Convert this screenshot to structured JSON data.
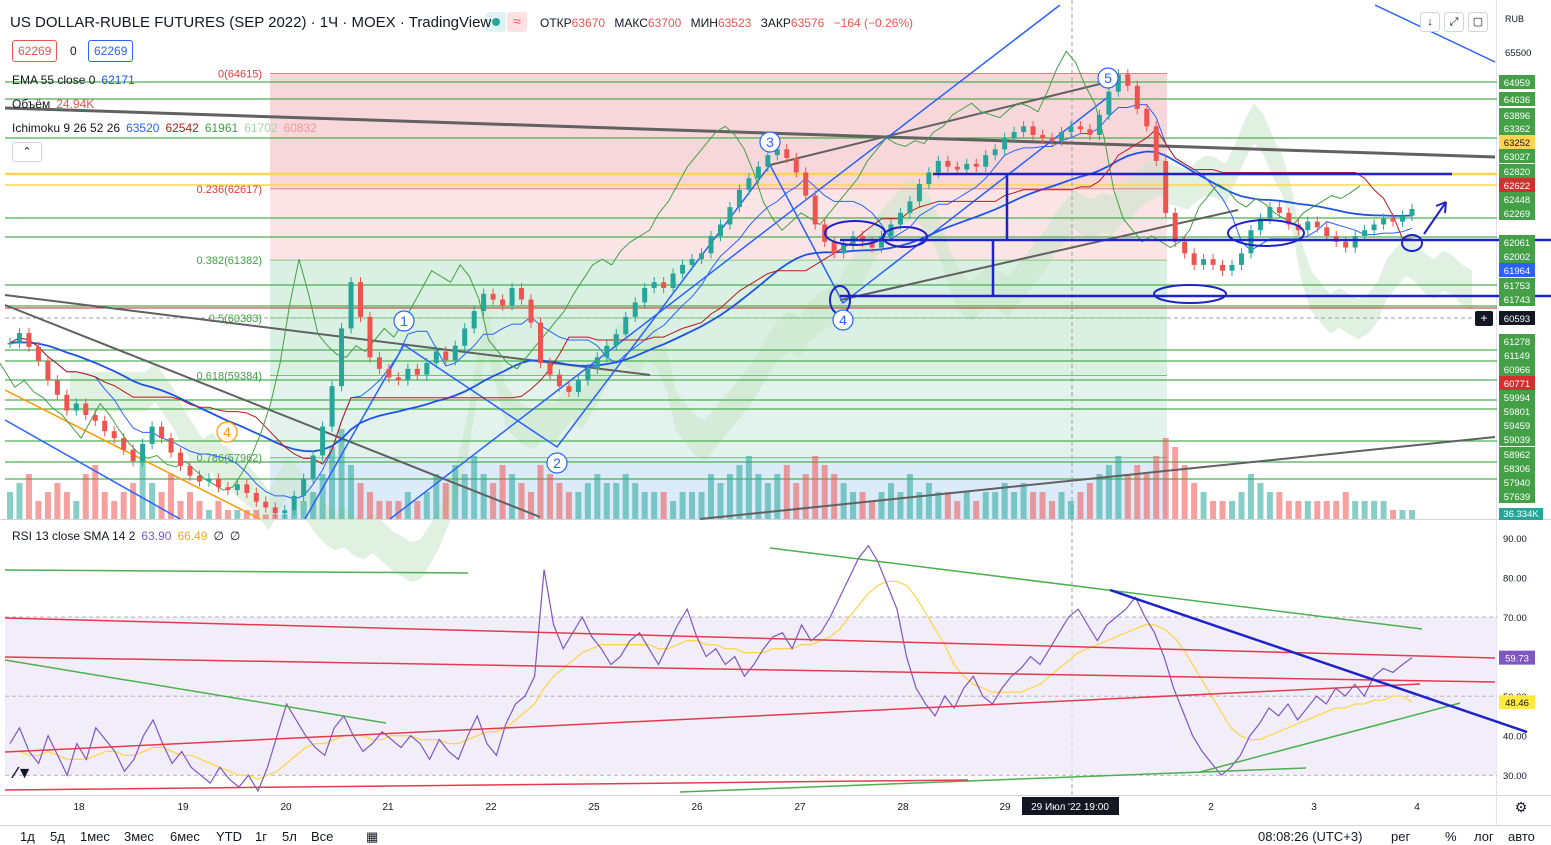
{
  "header": {
    "title": "US DOLLAR-RUBLE FUTURES (SEP 2022) · 1Ч · MOEX · TradingView",
    "ohlc": [
      {
        "label": "ОТКР",
        "value": "63670"
      },
      {
        "label": "МАКС",
        "value": "63700"
      },
      {
        "label": "МИН",
        "value": "63523"
      },
      {
        "label": "ЗАКР",
        "value": "63576"
      },
      {
        "label": "",
        "value": "−164 (−0.26%)"
      }
    ],
    "sell_price": "62269",
    "spread": "0",
    "buy_price": "62269",
    "currency": "RUB",
    "collapse": "⌃"
  },
  "legend": {
    "ema": {
      "name": "EMA 55 close 0",
      "value": "62171"
    },
    "volume": {
      "name": "Объём",
      "value": "24.94K"
    },
    "ichimoku": {
      "name": "Ichimoku 9 26 52 26",
      "values": [
        "63520",
        "62542",
        "61961",
        "61702",
        "60832"
      ]
    },
    "rsi": {
      "name": "RSI 13 close SMA 14 2",
      "values": [
        "63.90",
        "66.49",
        "∅",
        "∅"
      ]
    }
  },
  "colors": {
    "up": "#26a69a",
    "down": "#ef5350",
    "green_line": "#4caf50",
    "blue_draw": "#1e22c8",
    "fib_red": "#f8d7da",
    "fib_green": "#d9f0e3",
    "fib_blue": "#dcebf9",
    "rsi_line": "#7e57c2",
    "rsi_ma": "#ffd54f"
  },
  "chart_data": {
    "type": "candlestick",
    "title": "US DOLLAR-RUBLE FUTURES (SEP 2022)",
    "interval": "1Ч",
    "ylim": [
      56900,
      65800
    ],
    "x_ticks": [
      "18",
      "19",
      "20",
      "21",
      "22",
      "25",
      "26",
      "27",
      "28",
      "29",
      "29 Июл '22   19:00",
      "2",
      "3",
      "4"
    ],
    "cursor_date": "29 Июл '22   19:00",
    "price_ticks": [
      "65500"
    ],
    "fib_levels": [
      {
        "label": "0(64615)",
        "price": 64615
      },
      {
        "label": "0.236(62617)",
        "price": 62617
      },
      {
        "label": "0.382(61382)",
        "price": 61382
      },
      {
        "label": "0.5(60383)",
        "price": 60383
      },
      {
        "label": "0.618(59384)",
        "price": 59384
      },
      {
        "label": "0.786(57962)",
        "price": 57962
      }
    ],
    "horizontal_levels": [
      {
        "price": 64959,
        "label": "64959"
      },
      {
        "price": 64636,
        "label": "64636"
      },
      {
        "price": 63896,
        "label": "63896"
      },
      {
        "price": 63362,
        "label": "63362"
      },
      {
        "price": 63252,
        "label": "63252"
      },
      {
        "price": 63027,
        "label": "63027"
      },
      {
        "price": 62820,
        "label": "62820"
      },
      {
        "price": 62622,
        "label": "62622"
      },
      {
        "price": 62448,
        "label": "62448"
      },
      {
        "price": 62269,
        "label": "62269"
      },
      {
        "price": 62061,
        "label": "62061"
      },
      {
        "price": 62002,
        "label": "62002"
      },
      {
        "price": 61964,
        "label": "61964"
      },
      {
        "price": 61753,
        "label": "61753"
      },
      {
        "price": 61743,
        "label": "61743"
      },
      {
        "price": 60593,
        "label": "60593"
      },
      {
        "price": 61278,
        "label": "61278"
      },
      {
        "price": 61149,
        "label": "61149"
      },
      {
        "price": 60966,
        "label": "60966"
      },
      {
        "price": 60771,
        "label": "60771"
      },
      {
        "price": 59994,
        "label": "59994"
      },
      {
        "price": 59801,
        "label": "59801"
      },
      {
        "price": 59459,
        "label": "59459"
      },
      {
        "price": 59039,
        "label": "59039"
      },
      {
        "price": 58962,
        "label": "58962"
      },
      {
        "price": 58306,
        "label": "58306"
      },
      {
        "price": 57940,
        "label": "57940"
      },
      {
        "price": 57639,
        "label": "57639"
      }
    ],
    "volume_label": "36.334K",
    "wave_labels": [
      "1",
      "2",
      "3",
      "4",
      "5",
      "4"
    ],
    "closes": [
      59950,
      60120,
      59880,
      59640,
      59300,
      59050,
      58780,
      58900,
      58700,
      58600,
      58420,
      58300,
      58100,
      57900,
      58200,
      58500,
      58300,
      58050,
      57820,
      57650,
      57550,
      57600,
      57450,
      57400,
      57500,
      57350,
      57200,
      57100,
      57000,
      57050,
      57300,
      57600,
      58000,
      58500,
      59200,
      60200,
      61000,
      60400,
      59700,
      59500,
      59350,
      59300,
      59500,
      59400,
      59600,
      59800,
      59650,
      59900,
      60200,
      60500,
      60800,
      60700,
      60600,
      60900,
      60700,
      60300,
      59600,
      59400,
      59200,
      59100,
      59300,
      59500,
      59700,
      59900,
      60100,
      60400,
      60650,
      60900,
      61000,
      60900,
      61150,
      61300,
      61400,
      61500,
      61800,
      62000,
      62300,
      62600,
      62800,
      63000,
      63200,
      63300,
      63150,
      62900,
      62500,
      62000,
      61700,
      61500,
      61650,
      61800,
      61700,
      61600,
      61800,
      62000,
      62200,
      62400,
      62700,
      62900,
      63100,
      63000,
      62950,
      63050,
      63000,
      63200,
      63300,
      63500,
      63600,
      63700,
      63550,
      63500,
      63450,
      63600,
      63700,
      63650,
      63550,
      63900,
      64300,
      64600,
      64400,
      64000,
      63700,
      63100,
      62200,
      61700,
      61500,
      61300,
      61400,
      61300,
      61200,
      61300,
      61500,
      61900,
      62100,
      62300,
      62200,
      62000,
      61900,
      62050,
      61950,
      61800,
      61700,
      61600,
      61800,
      61900,
      62000,
      62100,
      62050,
      62150,
      62269
    ],
    "volumes": [
      0.3,
      0.4,
      0.5,
      0.2,
      0.3,
      0.4,
      0.3,
      0.2,
      0.5,
      0.6,
      0.3,
      0.2,
      0.3,
      0.4,
      0.7,
      0.4,
      0.3,
      0.5,
      0.2,
      0.3,
      0.2,
      0.1,
      0.2,
      0.1,
      0.1,
      0.1,
      0.1,
      0.05,
      0.05,
      0.05,
      0.1,
      0.2,
      0.3,
      0.5,
      0.8,
      1.0,
      0.6,
      0.4,
      0.3,
      0.2,
      0.2,
      0.2,
      0.3,
      0.2,
      0.3,
      0.5,
      0.4,
      0.6,
      0.5,
      0.7,
      0.5,
      0.4,
      0.6,
      0.5,
      0.4,
      0.3,
      0.6,
      0.5,
      0.4,
      0.3,
      0.3,
      0.4,
      0.5,
      0.4,
      0.4,
      0.5,
      0.4,
      0.3,
      0.3,
      0.3,
      0.2,
      0.3,
      0.3,
      0.3,
      0.5,
      0.4,
      0.5,
      0.6,
      0.7,
      0.5,
      0.4,
      0.5,
      0.6,
      0.4,
      0.5,
      0.7,
      0.6,
      0.5,
      0.4,
      0.3,
      0.3,
      0.2,
      0.3,
      0.4,
      0.3,
      0.5,
      0.3,
      0.4,
      0.3,
      0.3,
      0.2,
      0.3,
      0.2,
      0.3,
      0.3,
      0.4,
      0.3,
      0.4,
      0.3,
      0.3,
      0.2,
      0.3,
      0.2,
      0.3,
      0.4,
      0.5,
      0.6,
      0.7,
      0.5,
      0.6,
      0.5,
      0.7,
      0.9,
      0.8,
      0.6,
      0.4,
      0.3,
      0.2,
      0.2,
      0.2,
      0.3,
      0.5,
      0.4,
      0.3,
      0.3,
      0.2,
      0.2,
      0.2,
      0.2,
      0.2,
      0.2,
      0.3,
      0.2,
      0.2,
      0.2,
      0.2,
      0.1,
      0.1,
      0.1
    ],
    "rsi": {
      "ylim": [
        25,
        92
      ],
      "ticks": [
        "90.00",
        "80.00",
        "70.00",
        "60.00",
        "50.00",
        "40.00",
        "30.00"
      ],
      "current": "59.73",
      "ma_current": "48.46",
      "values": [
        38,
        42,
        36,
        33,
        40,
        35,
        30,
        38,
        34,
        42,
        39,
        36,
        31,
        34,
        40,
        44,
        38,
        33,
        36,
        32,
        30,
        28,
        32,
        29,
        27,
        30,
        26,
        32,
        40,
        48,
        44,
        40,
        37,
        35,
        42,
        45,
        40,
        36,
        38,
        41,
        39,
        37,
        40,
        38,
        34,
        39,
        36,
        34,
        40,
        45,
        38,
        35,
        43,
        48,
        50,
        55,
        82,
        68,
        62,
        66,
        70,
        65,
        62,
        58,
        60,
        64,
        66,
        62,
        58,
        63,
        68,
        72,
        65,
        60,
        62,
        58,
        60,
        55,
        58,
        62,
        65,
        66,
        62,
        68,
        64,
        66,
        70,
        75,
        80,
        85,
        88,
        84,
        78,
        72,
        60,
        52,
        48,
        45,
        50,
        47,
        52,
        55,
        50,
        48,
        52,
        55,
        57,
        60,
        58,
        62,
        66,
        70,
        72,
        68,
        64,
        68,
        70,
        72,
        75,
        70,
        66,
        60,
        52,
        46,
        40,
        36,
        33,
        30,
        32,
        35,
        40,
        43,
        47,
        45,
        48,
        44,
        47,
        50,
        48,
        52,
        50,
        53,
        50,
        55,
        57,
        56,
        58,
        59.73
      ],
      "ma": [
        36,
        36,
        35,
        35,
        36,
        35,
        34,
        34,
        34,
        35,
        36,
        36,
        35,
        35,
        36,
        37,
        37,
        36,
        35,
        35,
        34,
        33,
        32,
        31,
        30,
        30,
        29,
        30,
        31,
        33,
        35,
        37,
        38,
        38,
        39,
        40,
        40,
        40,
        39,
        39,
        40,
        40,
        40,
        39,
        39,
        39,
        38,
        38,
        39,
        40,
        41,
        41,
        42,
        44,
        46,
        48,
        52,
        55,
        57,
        59,
        61,
        62,
        63,
        63,
        63,
        63,
        63,
        63,
        62,
        62,
        63,
        64,
        64,
        63,
        63,
        62,
        62,
        61,
        61,
        61,
        62,
        62,
        62,
        63,
        63,
        64,
        65,
        67,
        70,
        73,
        76,
        78,
        79,
        79,
        78,
        75,
        71,
        67,
        63,
        58,
        55,
        53,
        52,
        51,
        51,
        51,
        51,
        52,
        53,
        55,
        57,
        59,
        61,
        62,
        63,
        64,
        65,
        66,
        67,
        68,
        68,
        67,
        65,
        62,
        58,
        54,
        50,
        46,
        42,
        40,
        39,
        39,
        40,
        41,
        42,
        43,
        44,
        45,
        46,
        47,
        47,
        48,
        48,
        49,
        49,
        50,
        50,
        48.46
      ]
    }
  },
  "bottombar": {
    "ranges": [
      "1д",
      "5д",
      "1мес",
      "3мес",
      "6мес",
      "YTD",
      "1г",
      "5л",
      "Все"
    ],
    "time": "08:08:26 (UTC+3)",
    "options": [
      "рег",
      "%",
      "лог",
      "авто"
    ]
  }
}
